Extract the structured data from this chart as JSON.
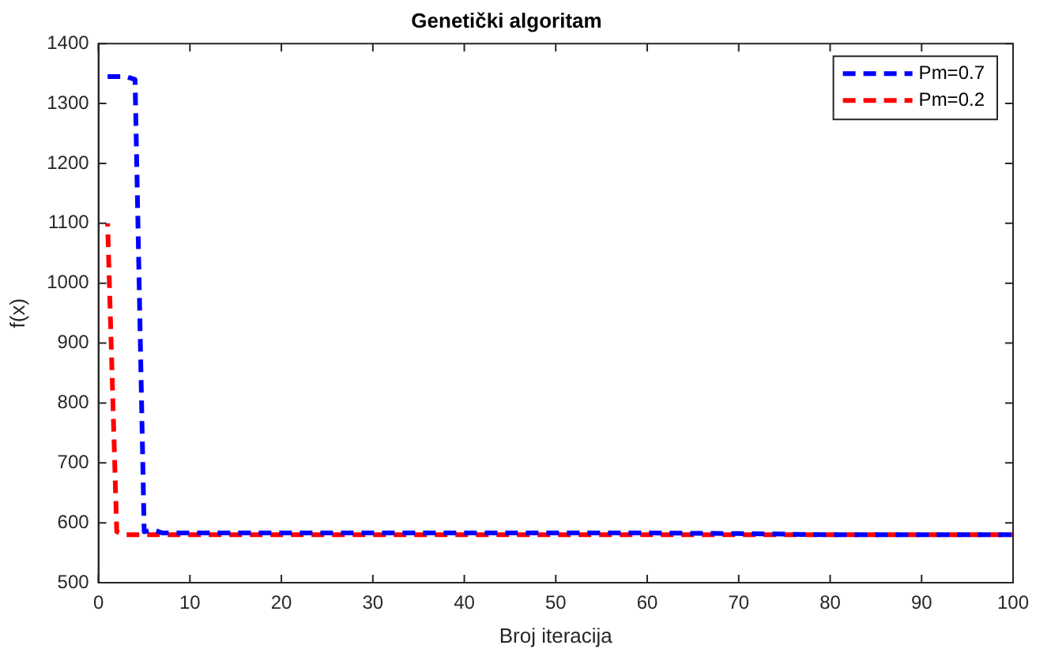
{
  "chart_data": {
    "type": "line",
    "title": "Genetički algoritam",
    "xlabel": "Broj iteracija",
    "ylabel": "f(x)",
    "xlim": [
      0,
      100
    ],
    "xticks": [
      0,
      10,
      20,
      30,
      40,
      50,
      60,
      70,
      80,
      90,
      100
    ],
    "ylim": [
      500,
      1400
    ],
    "yticks": [
      500,
      600,
      700,
      800,
      900,
      1000,
      1100,
      1200,
      1300,
      1400
    ],
    "grid": false,
    "legend": "top right",
    "line_style": "dashed",
    "marker": "none",
    "series": [
      {
        "name": "Pm=0.7",
        "color": "#0000ff",
        "x": [
          1,
          2,
          3,
          4,
          5,
          6,
          7,
          10,
          20,
          30,
          40,
          50,
          60,
          70,
          80,
          90,
          100
        ],
        "values": [
          1345,
          1345,
          1345,
          1340,
          585,
          588,
          583,
          583,
          583,
          583,
          583,
          583,
          583,
          582,
          580,
          580,
          580
        ]
      },
      {
        "name": "Pm=0.2",
        "color": "#ff0000",
        "x": [
          1,
          2,
          3,
          10,
          20,
          30,
          40,
          50,
          60,
          70,
          80,
          90,
          100
        ],
        "values": [
          1100,
          585,
          580,
          580,
          580,
          580,
          580,
          580,
          580,
          580,
          580,
          580,
          580
        ]
      }
    ]
  }
}
